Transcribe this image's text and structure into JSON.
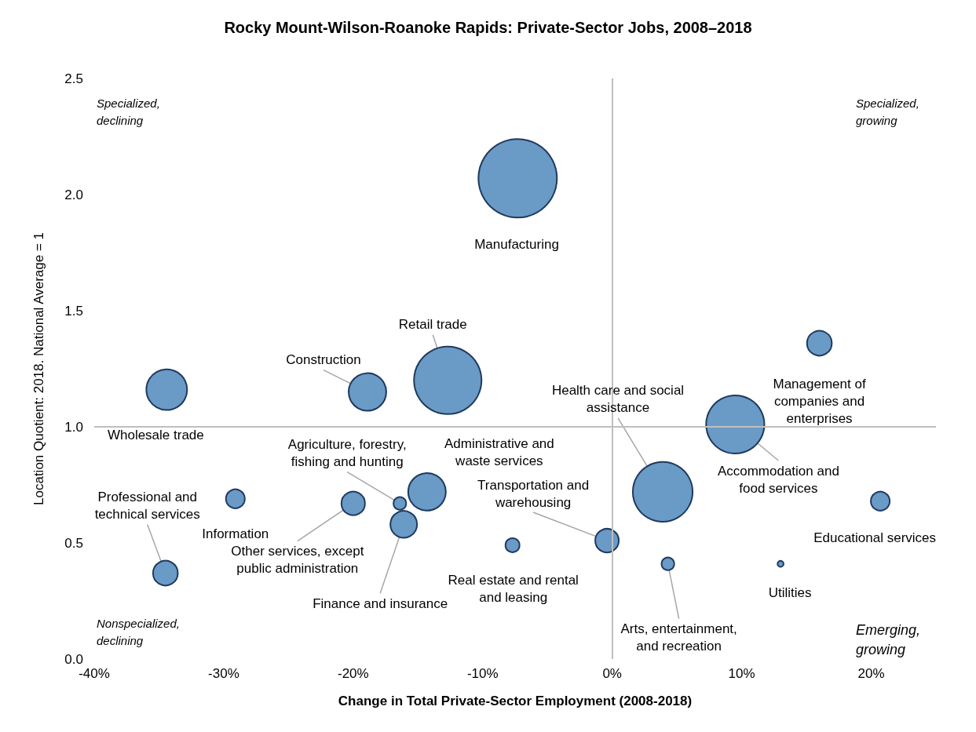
{
  "chart_data": {
    "type": "bubble",
    "title": "Rocky Mount-Wilson-Roanoke Rapids: Private-Sector Jobs, 2008–2018",
    "xlabel": "Change in Total Private-Sector Employment (2008-2018)",
    "ylabel": "Location Quotient: 2018. National Average = 1",
    "x": [
      -7.3,
      -12.7,
      -18.9,
      -34.4,
      3.9,
      9.5,
      16.0,
      20.7,
      13.0,
      4.3,
      -0.4,
      -7.7,
      -14.3,
      -16.4,
      -16.1,
      -20.0,
      -29.1,
      -34.5
    ],
    "values": [
      2.07,
      1.2,
      1.15,
      1.16,
      0.72,
      1.01,
      1.36,
      0.68,
      0.41,
      0.41,
      0.51,
      0.49,
      0.72,
      0.67,
      0.58,
      0.67,
      0.69,
      0.37
    ],
    "sizes": [
      1,
      0.74,
      0.23,
      0.27,
      0.58,
      0.55,
      0.1,
      0.058,
      0.006,
      0.026,
      0.09,
      0.032,
      0.23,
      0.026,
      0.116,
      0.09,
      0.058,
      0.1
    ],
    "color": "#6a9ac6",
    "marker": "circle",
    "xlim": [
      -40,
      25
    ],
    "xticks": [
      {
        "value": -40,
        "label": "-40%"
      },
      {
        "value": -30,
        "label": "-30%"
      },
      {
        "value": -20,
        "label": "-20%"
      },
      {
        "value": -10,
        "label": "-10%"
      },
      {
        "value": 0,
        "label": "0%"
      },
      {
        "value": 10,
        "label": "10%"
      },
      {
        "value": 20,
        "label": "20%"
      }
    ],
    "ylim": [
      0,
      2.5
    ],
    "yticks": [
      {
        "value": 0,
        "label": "0.0"
      },
      {
        "value": 0.5,
        "label": "0.5"
      },
      {
        "value": 1,
        "label": "1.0"
      },
      {
        "value": 1.5,
        "label": "1.5"
      },
      {
        "value": 2,
        "label": "2.0"
      },
      {
        "value": 2.5,
        "label": "2.5"
      }
    ],
    "ref_lines": [
      {
        "axis": "x",
        "value": 0,
        "color": "#bfbfbf"
      },
      {
        "axis": "y",
        "value": 1,
        "color": "#bfbfbf"
      }
    ],
    "annotations": [
      {
        "text": "Retail trade",
        "x": -12.7,
        "y": 1.2
      },
      {
        "text": "Construction",
        "x": -18.9,
        "y": 1.15
      },
      {
        "text": "Wholesale trade",
        "x": -34.4,
        "y": 1.16
      },
      {
        "text": "Health care and social\nassistance",
        "x": 3.9,
        "y": 0.72
      },
      {
        "text": "Accommodation and\nfood services",
        "x": 9.5,
        "y": 1.01
      },
      {
        "text": "Management of\ncompanies and\nenterprises",
        "x": 16.0,
        "y": 1.36
      },
      {
        "text": "Educational services",
        "x": 20.7,
        "y": 0.68
      },
      {
        "text": "Utilities",
        "x": 13.0,
        "y": 0.41
      },
      {
        "text": "Arts, entertainment,\nand recreation",
        "x": 4.3,
        "y": 0.41
      },
      {
        "text": "Transportation and\nwarehousing",
        "x": -0.4,
        "y": 0.51
      },
      {
        "text": "Real estate and rental\nand leasing",
        "x": -7.7,
        "y": 0.49
      },
      {
        "text": "Administrative and\nwaste services",
        "x": -14.3,
        "y": 0.72
      },
      {
        "text": "Agriculture, forestry,\nfishing and hunting",
        "x": -16.4,
        "y": 0.67
      },
      {
        "text": "Finance and insurance",
        "x": -16.1,
        "y": 0.58
      },
      {
        "text": "Other services, except\npublic administration",
        "x": -20.0,
        "y": 0.67
      },
      {
        "text": "Information",
        "x": -29.1,
        "y": 0.69
      },
      {
        "text": "Professional and\ntechnical services",
        "x": -34.5,
        "y": 0.37
      },
      "Specialized,\ndeclining",
      "Specialized,\ngrowing",
      "Nonspecialized,\ndeclining",
      "Emerging,\ngrowing",
      "Manufacturing"
    ]
  }
}
